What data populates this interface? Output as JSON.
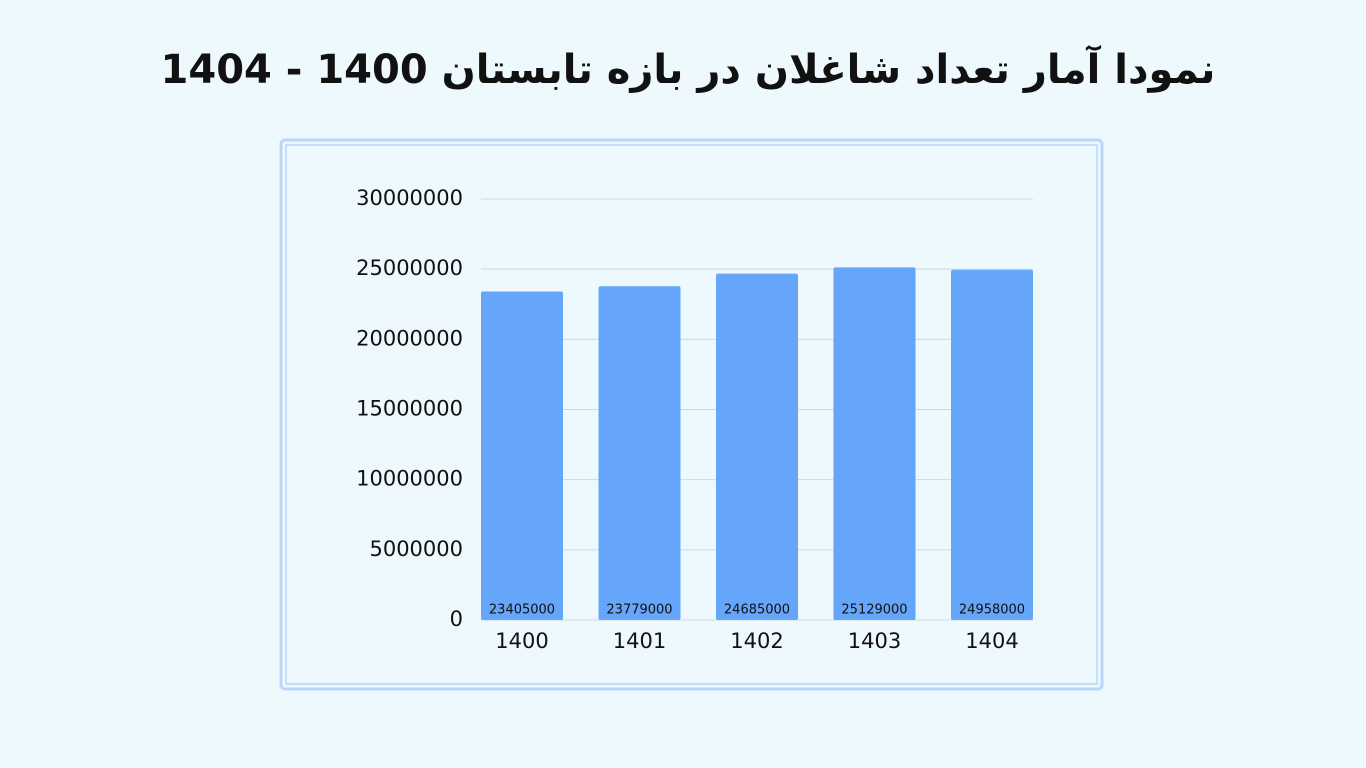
{
  "chart_data": {
    "type": "bar",
    "title": "نمودا آمار تعداد شاغلان در بازه تابستان 1400 - 1404",
    "categories": [
      "1400",
      "1401",
      "1402",
      "1403",
      "1404"
    ],
    "values": [
      23405000,
      23779000,
      24685000,
      25129000,
      24958000
    ],
    "color": "#65a5fa",
    "ylim": [
      0,
      30000000
    ],
    "yticks": [
      0,
      5000000,
      10000000,
      15000000,
      20000000,
      25000000,
      30000000
    ],
    "grid": true
  }
}
